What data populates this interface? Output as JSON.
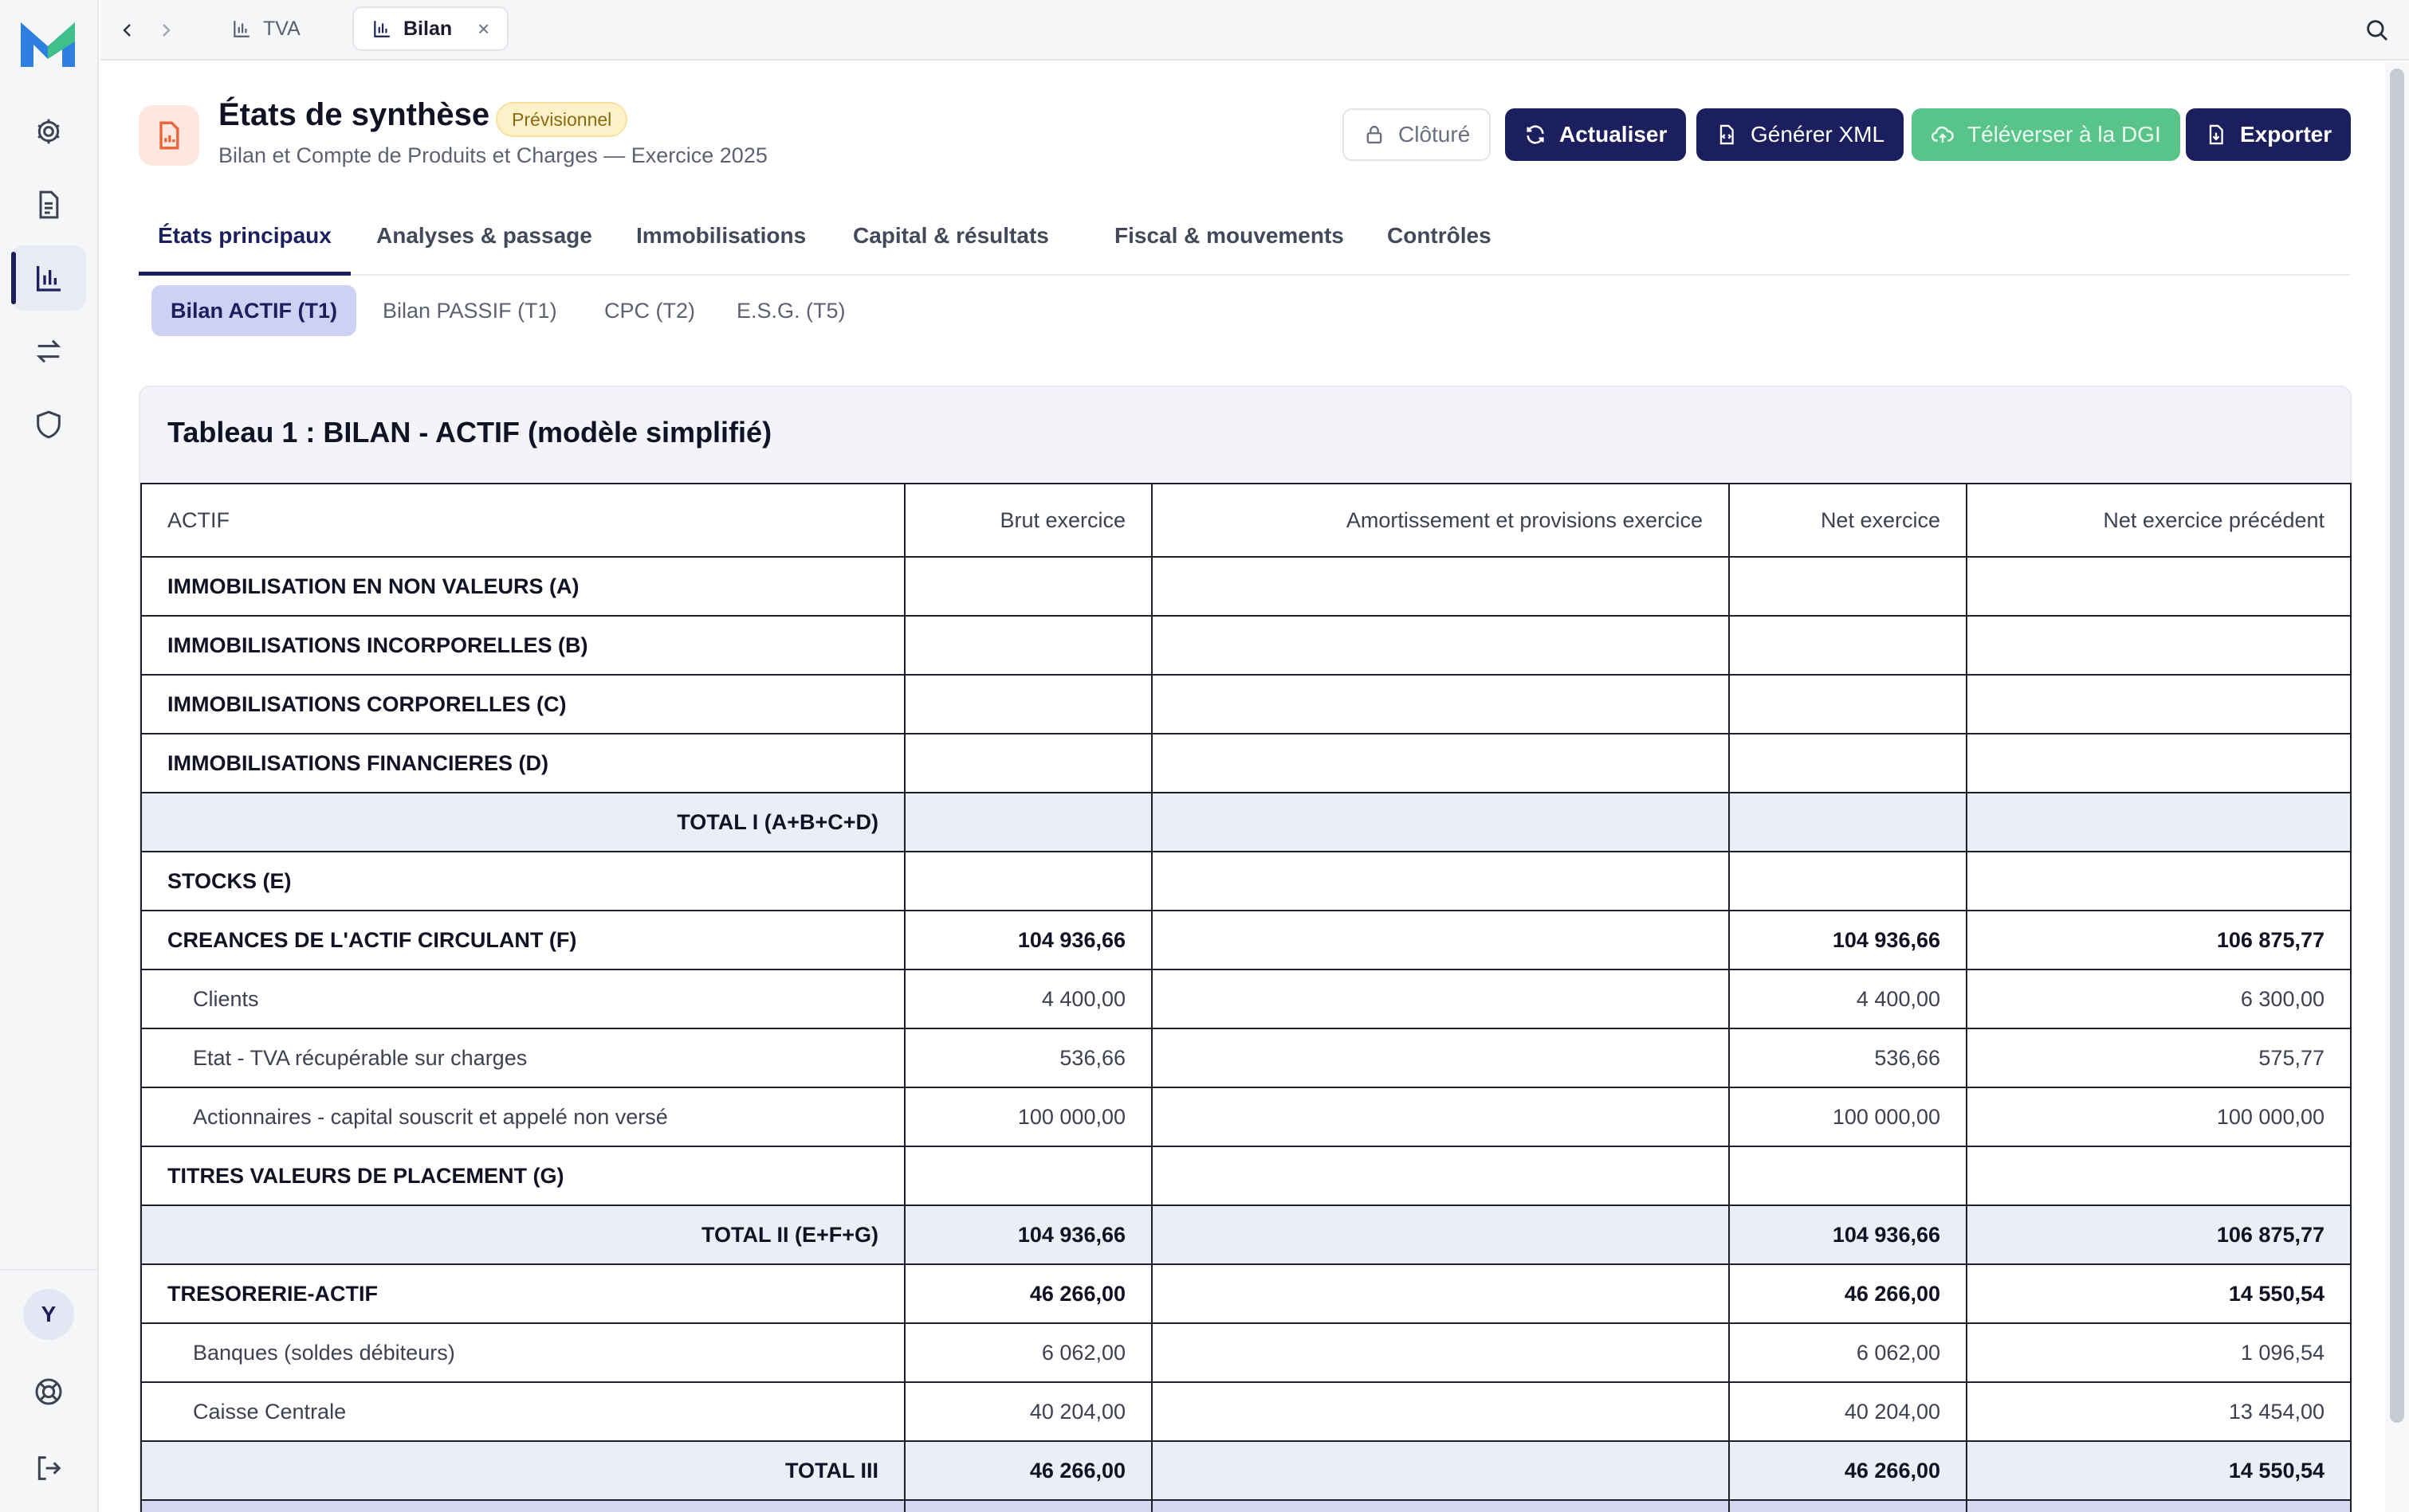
{
  "tabs": {
    "items": [
      {
        "label": "TVA",
        "icon": "bar-chart-icon"
      },
      {
        "label": "Bilan",
        "icon": "bar-chart-icon",
        "close": "×"
      }
    ]
  },
  "sidebar": {
    "avatar_initial": "Y",
    "items": [
      "settings",
      "documents",
      "reports",
      "transfers",
      "security"
    ]
  },
  "header": {
    "title": "États de synthèse",
    "badge": "Prévisionnel",
    "subtitle": "Bilan et Compte de Produits et Charges — Exercice 2025"
  },
  "actions": {
    "cloture": "Clôturé",
    "actualiser": "Actualiser",
    "generer_xml": "Générer XML",
    "televerser": "Téléverser à la DGI",
    "exporter": "Exporter"
  },
  "section_tabs": [
    "États principaux",
    "Analyses & passage",
    "Immobilisations",
    "Capital & résultats",
    "Fiscal & mouvements",
    "Contrôles"
  ],
  "sub_tabs": [
    "Bilan ACTIF (T1)",
    "Bilan PASSIF (T1)",
    "CPC (T2)",
    "E.S.G. (T5)"
  ],
  "table": {
    "title": "Tableau 1 : BILAN - ACTIF (modèle simplifié)",
    "columns": [
      "ACTIF",
      "Brut exercice",
      "Amortissement et provisions exercice",
      "Net exercice",
      "Net exercice précédent"
    ],
    "rows": [
      {
        "type": "sec",
        "label": "IMMOBILISATION EN NON VALEURS (A)",
        "brut": "",
        "amort": "",
        "net": "",
        "prev": ""
      },
      {
        "type": "sec",
        "label": "IMMOBILISATIONS INCORPORELLES (B)",
        "brut": "",
        "amort": "",
        "net": "",
        "prev": ""
      },
      {
        "type": "sec",
        "label": "IMMOBILISATIONS CORPORELLES (C)",
        "brut": "",
        "amort": "",
        "net": "",
        "prev": ""
      },
      {
        "type": "sec",
        "label": "IMMOBILISATIONS FINANCIERES (D)",
        "brut": "",
        "amort": "",
        "net": "",
        "prev": ""
      },
      {
        "type": "total",
        "label": "TOTAL I (A+B+C+D)",
        "brut": "",
        "amort": "",
        "net": "",
        "prev": ""
      },
      {
        "type": "sec",
        "label": "STOCKS (E)",
        "brut": "",
        "amort": "",
        "net": "",
        "prev": ""
      },
      {
        "type": "sec",
        "label": "CREANCES DE L'ACTIF CIRCULANT (F)",
        "brut": "104 936,66",
        "amort": "",
        "net": "104 936,66",
        "prev": "106 875,77"
      },
      {
        "type": "det",
        "label": "Clients",
        "brut": "4 400,00",
        "amort": "",
        "net": "4 400,00",
        "prev": "6 300,00"
      },
      {
        "type": "det",
        "label": "Etat - TVA récupérable sur charges",
        "brut": "536,66",
        "amort": "",
        "net": "536,66",
        "prev": "575,77"
      },
      {
        "type": "det",
        "label": "Actionnaires - capital souscrit et appelé non versé",
        "brut": "100 000,00",
        "amort": "",
        "net": "100 000,00",
        "prev": "100 000,00"
      },
      {
        "type": "sec",
        "label": "TITRES VALEURS DE PLACEMENT (G)",
        "brut": "",
        "amort": "",
        "net": "",
        "prev": ""
      },
      {
        "type": "total",
        "label": "TOTAL II (E+F+G)",
        "brut": "104 936,66",
        "amort": "",
        "net": "104 936,66",
        "prev": "106 875,77"
      },
      {
        "type": "sec",
        "label": "TRESORERIE-ACTIF",
        "brut": "46 266,00",
        "amort": "",
        "net": "46 266,00",
        "prev": "14 550,54"
      },
      {
        "type": "det",
        "label": "Banques (soldes débiteurs)",
        "brut": "6 062,00",
        "amort": "",
        "net": "6 062,00",
        "prev": "1 096,54"
      },
      {
        "type": "det",
        "label": "Caisse Centrale",
        "brut": "40 204,00",
        "amort": "",
        "net": "40 204,00",
        "prev": "13 454,00"
      },
      {
        "type": "total",
        "label": "TOTAL III",
        "brut": "46 266,00",
        "amort": "",
        "net": "46 266,00",
        "prev": "14 550,54"
      }
    ]
  },
  "colors": {
    "navy": "#1b1f5e",
    "green": "#58c48a",
    "badge_bg": "#fdf1c9",
    "orange": "#e8643a"
  }
}
